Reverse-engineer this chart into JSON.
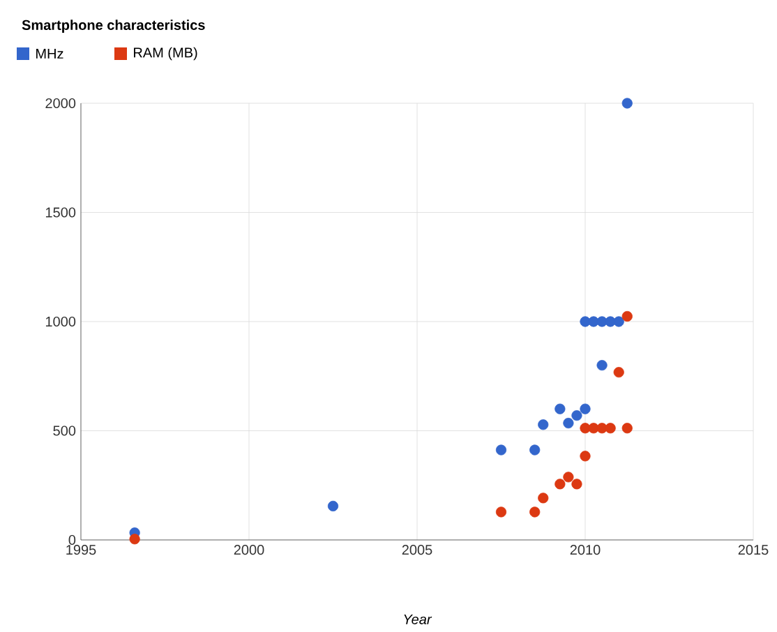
{
  "chart_data": {
    "type": "scatter",
    "title": "Smartphone characteristics",
    "xlabel": "Year",
    "series": [
      {
        "name": "MHz",
        "color": "#3366cc",
        "x": [
          1996.6,
          2002.5,
          2007.5,
          2008.5,
          2008.75,
          2009.25,
          2009.5,
          2009.75,
          2010,
          2010,
          2010.25,
          2010.5,
          2010.75,
          2011,
          2010.5,
          2011.25
        ],
        "values": [
          33,
          155,
          412,
          412,
          528,
          600,
          535,
          570,
          600,
          1000,
          1000,
          1000,
          1000,
          1000,
          800,
          2000
        ]
      },
      {
        "name": "RAM (MB)",
        "color": "#dc3912",
        "x": [
          1996.6,
          2007.5,
          2008.5,
          2008.75,
          2009.25,
          2009.5,
          2009.75,
          2010,
          2010,
          2010.25,
          2010.5,
          2010.75,
          2011.25,
          2011,
          2011.25
        ],
        "values": [
          4,
          128,
          128,
          192,
          256,
          288,
          256,
          384,
          512,
          512,
          512,
          512,
          512,
          768,
          1024
        ]
      }
    ],
    "xlim": [
      1995,
      2015
    ],
    "xticks": [
      1995,
      2000,
      2005,
      2010,
      2015
    ],
    "ylim": [
      0,
      2000
    ],
    "yticks": [
      0,
      500,
      1000,
      1500,
      2000
    ],
    "grid": true,
    "legend": "top left"
  }
}
